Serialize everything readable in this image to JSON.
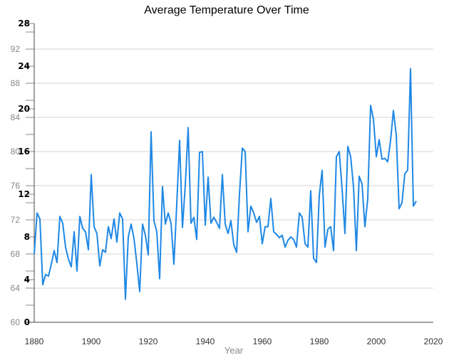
{
  "chart_data": {
    "type": "line",
    "title": "Average Temperature Over Time",
    "xlabel": "Year",
    "ylabel": "",
    "xlim": [
      1880,
      2020
    ],
    "x_ticks": [
      1880,
      1900,
      1920,
      1940,
      1960,
      1980,
      2000,
      2020
    ],
    "y_axis_fahrenheit": {
      "ylim": [
        60,
        95
      ],
      "ticks": [
        60,
        64,
        68,
        72,
        76,
        80,
        84,
        88,
        92
      ]
    },
    "y_axis_celsius": {
      "ylim": [
        0,
        28
      ],
      "ticks": [
        0,
        4,
        8,
        12,
        16,
        20,
        24,
        28
      ]
    },
    "grid": "horizontal",
    "line_color": "#1f88e5",
    "series": [
      {
        "x": [
          1880,
          1881,
          1882,
          1883,
          1884,
          1885,
          1886,
          1887,
          1888,
          1889,
          1890,
          1891,
          1892,
          1893,
          1894,
          1895,
          1896,
          1897,
          1898,
          1899,
          1900,
          1901,
          1902,
          1903,
          1904,
          1905,
          1906,
          1907,
          1908,
          1909,
          1910,
          1911,
          1912,
          1913,
          1914,
          1915,
          1916,
          1917,
          1918,
          1919,
          1920,
          1921,
          1922,
          1923,
          1924,
          1925,
          1926,
          1927,
          1928,
          1929,
          1930,
          1931,
          1932,
          1933,
          1934,
          1935,
          1936,
          1937,
          1938,
          1939,
          1940,
          1941,
          1942,
          1943,
          1944,
          1945,
          1946,
          1947,
          1948,
          1949,
          1950,
          1951,
          1952,
          1953,
          1954,
          1955,
          1956,
          1957,
          1958,
          1959,
          1960,
          1961,
          1962,
          1963,
          1964,
          1965,
          1966,
          1967,
          1968,
          1969,
          1970,
          1971,
          1972,
          1973,
          1974,
          1975,
          1976,
          1977,
          1978,
          1979,
          1980,
          1981,
          1982,
          1983,
          1984,
          1985,
          1986,
          1987,
          1988,
          1989,
          1990,
          1991,
          1992,
          1993,
          1994,
          1995,
          1996,
          1997,
          1998,
          1999,
          2000,
          2001,
          2002,
          2003,
          2004,
          2005,
          2006,
          2007,
          2008,
          2009,
          2010,
          2011,
          2012,
          2013,
          2014
        ],
        "values": [
          68.0,
          72.8,
          72.1,
          64.4,
          65.6,
          65.4,
          66.8,
          68.4,
          67.0,
          72.4,
          71.6,
          68.8,
          67.4,
          66.5,
          70.6,
          66.0,
          72.4,
          71.0,
          70.6,
          68.5,
          77.3,
          71.2,
          70.4,
          66.6,
          68.5,
          68.2,
          71.2,
          69.8,
          72.1,
          69.4,
          72.8,
          72.1,
          62.7,
          70.0,
          71.5,
          69.8,
          66.9,
          63.6,
          71.5,
          70.2,
          67.9,
          82.3,
          71.9,
          70.6,
          65.1,
          75.9,
          71.5,
          72.8,
          71.6,
          66.8,
          73.8,
          81.3,
          71.1,
          76.1,
          82.8,
          71.6,
          72.3,
          69.7,
          79.9,
          80.0,
          71.4,
          77.0,
          71.6,
          72.3,
          71.7,
          71.0,
          77.3,
          71.5,
          70.4,
          71.9,
          69.1,
          68.2,
          75.0,
          80.4,
          80.0,
          70.6,
          73.6,
          72.8,
          71.7,
          72.4,
          69.2,
          71.2,
          71.2,
          74.5,
          70.6,
          70.3,
          69.9,
          70.2,
          68.8,
          69.6,
          70.0,
          69.7,
          68.8,
          72.8,
          72.3,
          69.2,
          68.8,
          75.4,
          67.5,
          67.0,
          74.9,
          77.8,
          68.8,
          70.9,
          71.2,
          68.4,
          79.4,
          80.0,
          75.6,
          70.4,
          80.6,
          79.4,
          75.9,
          68.4,
          77.1,
          76.2,
          71.2,
          74.5,
          85.4,
          83.8,
          79.4,
          81.4,
          79.1,
          79.2,
          78.8,
          81.3,
          84.8,
          81.9,
          73.3,
          74.0,
          77.4,
          77.8,
          89.7,
          73.6,
          74.2
        ]
      }
    ]
  }
}
